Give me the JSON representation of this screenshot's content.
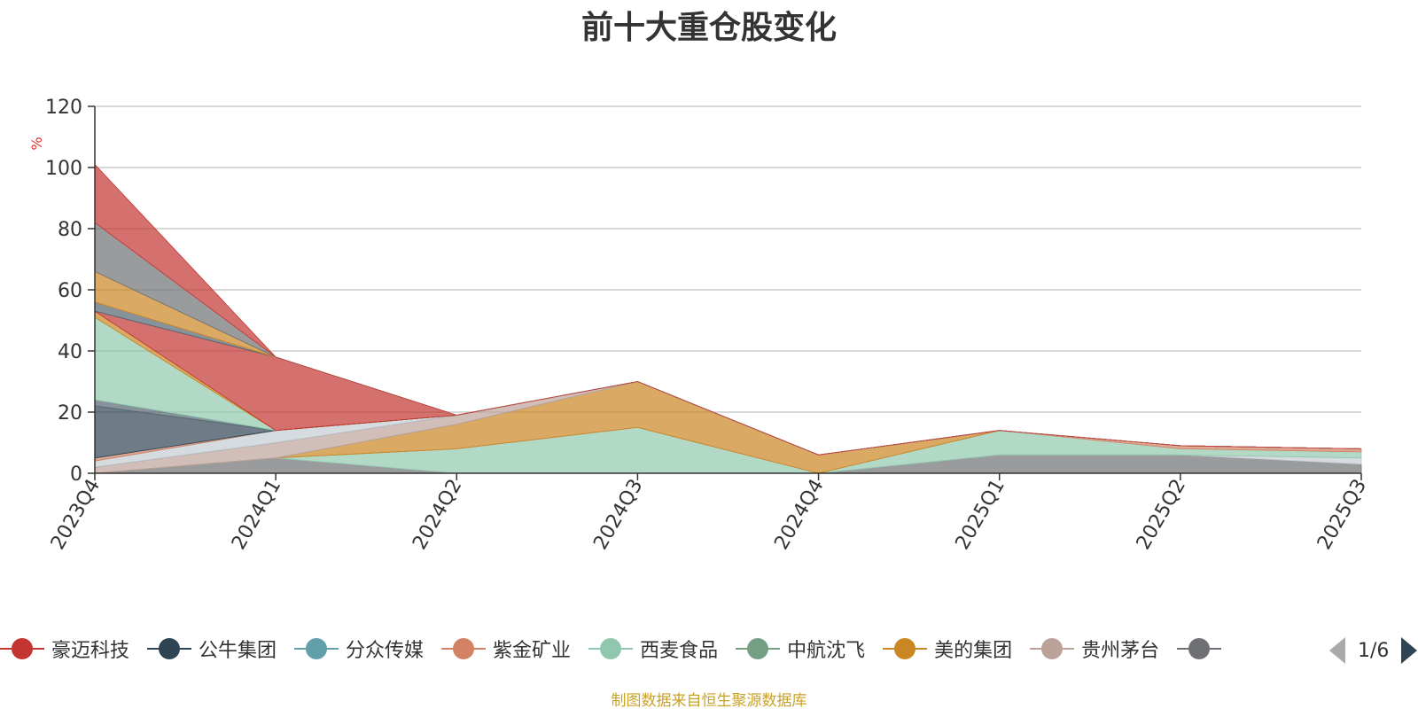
{
  "chart_data": {
    "type": "area",
    "stacked": true,
    "title": "前十大重仓股变化",
    "ylabel": "%",
    "xlabel": "",
    "ylim": [
      0,
      120
    ],
    "yticks": [
      0,
      20,
      40,
      60,
      80,
      100,
      120
    ],
    "grid": true,
    "categories": [
      "2023Q4",
      "2024Q1",
      "2024Q2",
      "2024Q3",
      "2024Q4",
      "2025Q1",
      "2025Q2",
      "2025Q3"
    ],
    "series": [
      {
        "name": "",
        "color": "#6e7074",
        "values": [
          0,
          5,
          0,
          0,
          0,
          6,
          6,
          3
        ]
      },
      {
        "name": "",
        "color": "#c4ccd3",
        "values": [
          0,
          0,
          0,
          0,
          0,
          0,
          0,
          2
        ]
      },
      {
        "name": "",
        "color": "#91c7ae",
        "values": [
          0,
          0,
          8,
          15,
          0,
          8,
          2,
          2
        ]
      },
      {
        "name": "",
        "color": "#d48265",
        "values": [
          0,
          0,
          0,
          0,
          0,
          0,
          1,
          1
        ]
      },
      {
        "name": "",
        "color": "#ca8622",
        "values": [
          0,
          0,
          8,
          15,
          6,
          0,
          0,
          0
        ]
      },
      {
        "name": "",
        "color": "#61a0a8",
        "values": [
          0,
          0,
          0,
          0,
          0,
          0,
          0,
          0
        ]
      },
      {
        "name": "",
        "color": "#bda29a",
        "values": [
          2,
          5,
          3,
          0,
          0,
          0,
          0,
          0
        ]
      },
      {
        "name": "",
        "color": "#2f4554",
        "values": [
          0,
          0,
          0,
          0,
          0,
          0,
          0,
          0
        ]
      },
      {
        "name": "",
        "color": "#c4ccd3",
        "values": [
          2,
          4,
          0,
          0,
          0,
          0,
          0,
          0
        ]
      },
      {
        "name": "",
        "color": "#61a0a8",
        "values": [
          0,
          0,
          0,
          0,
          0,
          0,
          0,
          0
        ]
      },
      {
        "name": "",
        "color": "#d48265",
        "values": [
          1,
          0,
          0,
          0,
          0,
          0,
          0,
          0
        ]
      },
      {
        "name": "",
        "color": "#749f83",
        "values": [
          0,
          0,
          0,
          0,
          0,
          0,
          0,
          0
        ]
      },
      {
        "name": "",
        "color": "#2f4554",
        "values": [
          17,
          0,
          0,
          0,
          0,
          0,
          0,
          0
        ]
      },
      {
        "name": "",
        "color": "#749f83",
        "values": [
          0,
          0,
          0,
          0,
          0,
          0,
          0,
          0
        ]
      },
      {
        "name": "",
        "color": "#546570",
        "values": [
          2,
          0,
          0,
          0,
          0,
          0,
          0,
          0
        ]
      },
      {
        "name": "",
        "color": "#91c7ae",
        "values": [
          27,
          0,
          0,
          0,
          0,
          0,
          0,
          0
        ]
      },
      {
        "name": "",
        "color": "#ca8622",
        "values": [
          2,
          0,
          0,
          0,
          0,
          0,
          0,
          0
        ]
      },
      {
        "name": "",
        "color": "#c23531",
        "values": [
          0,
          24,
          0,
          0,
          0,
          0,
          0,
          0
        ]
      },
      {
        "name": "",
        "color": "#546570",
        "values": [
          3,
          0,
          0,
          0,
          0,
          0,
          0,
          0
        ]
      },
      {
        "name": "",
        "color": "#d48265",
        "values": [
          0,
          0,
          0,
          0,
          0,
          0,
          0,
          0
        ]
      },
      {
        "name": "",
        "color": "#bda29a",
        "values": [
          0,
          0,
          0,
          0,
          0,
          0,
          0,
          0
        ]
      },
      {
        "name": "",
        "color": "#ca8622",
        "values": [
          10,
          0,
          0,
          0,
          0,
          0,
          0,
          0
        ]
      },
      {
        "name": "",
        "color": "#6e7074",
        "values": [
          16,
          0,
          0,
          0,
          0,
          0,
          0,
          0
        ]
      },
      {
        "name": "",
        "color": "#c4ccd3",
        "values": [
          0,
          0,
          0,
          0,
          0,
          0,
          0,
          0
        ]
      },
      {
        "name": "",
        "color": "#c23531",
        "values": [
          19,
          0,
          0,
          0,
          0,
          0,
          0,
          0
        ]
      }
    ],
    "legend": {
      "position": "bottom",
      "page": "1/6",
      "items": [
        {
          "name": "豪迈科技",
          "color": "#c23531"
        },
        {
          "name": "公牛集团",
          "color": "#2f4554"
        },
        {
          "name": "分众传媒",
          "color": "#61a0a8"
        },
        {
          "name": "紫金矿业",
          "color": "#d48265"
        },
        {
          "name": "西麦食品",
          "color": "#91c7ae"
        },
        {
          "name": "中航沈飞",
          "color": "#749f83"
        },
        {
          "name": "美的集团",
          "color": "#ca8622"
        },
        {
          "name": "贵州茅台",
          "color": "#bda29a"
        },
        {
          "name": "",
          "color": "#6e7074"
        }
      ]
    }
  },
  "footer": {
    "source": "制图数据来自恒生聚源数据库"
  }
}
